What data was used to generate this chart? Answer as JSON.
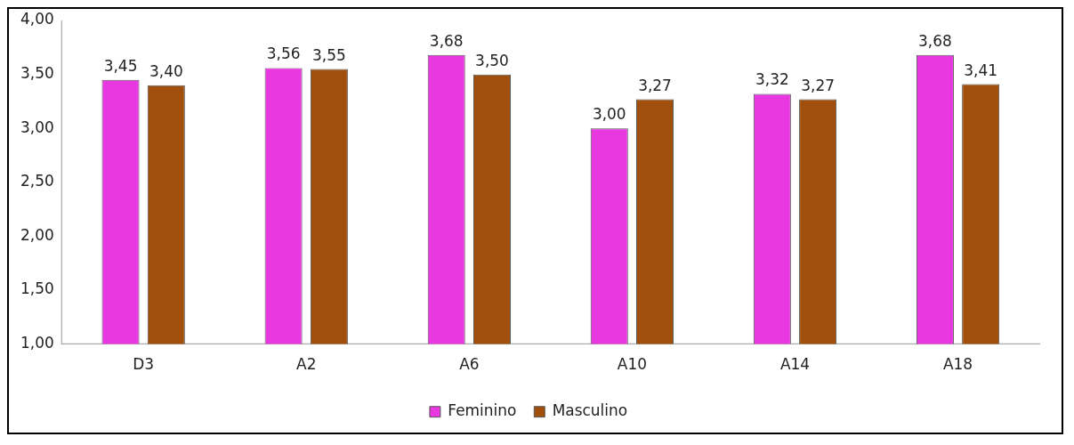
{
  "chart_data": {
    "type": "bar",
    "categories": [
      "D3",
      "A2",
      "A6",
      "A10",
      "A14",
      "A18"
    ],
    "series": [
      {
        "name": "Feminino",
        "color": "#e838e0",
        "values": [
          3.45,
          3.56,
          3.68,
          3.0,
          3.32,
          3.68
        ],
        "value_labels": [
          "3,45",
          "3,56",
          "3,68",
          "3,00",
          "3,32",
          "3,68"
        ]
      },
      {
        "name": "Masculino",
        "color": "#a0500c",
        "values": [
          3.4,
          3.55,
          3.5,
          3.27,
          3.27,
          3.41
        ],
        "value_labels": [
          "3,40",
          "3,55",
          "3,50",
          "3,27",
          "3,27",
          "3,41"
        ]
      }
    ],
    "ylim": [
      1,
      4
    ],
    "yticks": [
      {
        "value": 1,
        "label": "1,00"
      },
      {
        "value": 1.5,
        "label": "1,50"
      },
      {
        "value": 2,
        "label": "2,00"
      },
      {
        "value": 2.5,
        "label": "2,50"
      },
      {
        "value": 3,
        "label": "3,00"
      },
      {
        "value": 3.5,
        "label": "3,50"
      },
      {
        "value": 4,
        "label": "4,00"
      }
    ],
    "grid": false,
    "legend": "bottom"
  }
}
